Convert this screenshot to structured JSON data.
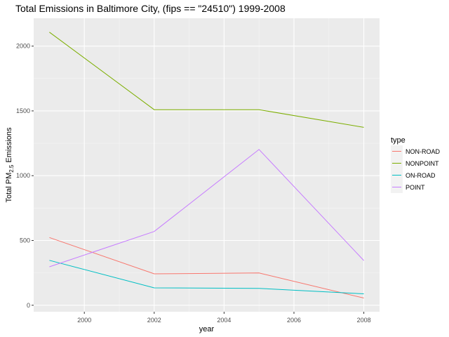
{
  "chart_data": {
    "type": "line",
    "title": "Total Emissions in Baltimore City, (fips == \"24510\") 1999-2008",
    "xlabel": "year",
    "ylabel": {
      "prefix": "Total PM",
      "subscript": "2.5",
      "suffix": " Emissions"
    },
    "x": [
      1999,
      2002,
      2005,
      2008
    ],
    "xticks": [
      2000,
      2002,
      2004,
      2006,
      2008
    ],
    "yticks": [
      0,
      500,
      1000,
      1500,
      2000
    ],
    "xlim": [
      1998.55,
      2008.45
    ],
    "ylim": [
      -50,
      2215
    ],
    "grid": true,
    "legend": {
      "title": "type",
      "placement": "right"
    },
    "series": [
      {
        "name": "NON-ROAD",
        "color": "#F8766D",
        "values": [
          522.9,
          242.8,
          248.9,
          55.8
        ]
      },
      {
        "name": "NONPOINT",
        "color": "#7CAE00",
        "values": [
          2107.6,
          1509.5,
          1509.5,
          1373.2
        ]
      },
      {
        "name": "ON-ROAD",
        "color": "#00BFC4",
        "values": [
          346.8,
          134.3,
          130.4,
          88.3
        ]
      },
      {
        "name": "POINT",
        "color": "#C77CFF",
        "values": [
          296.8,
          569.3,
          1202.5,
          344.98
        ]
      }
    ]
  }
}
